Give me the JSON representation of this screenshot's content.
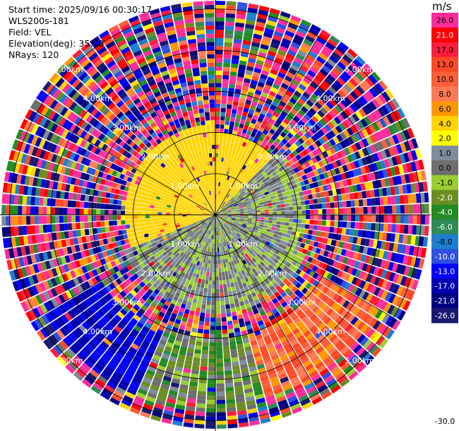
{
  "header": {
    "start_time": "Start time: 2025/09/16 00:30:17",
    "instrument": "WLS200s-181",
    "field": "Field: VEL",
    "elevation": "Elevation(deg): 35.00",
    "nrays": "NRays: 120"
  },
  "colorbar": {
    "unit": "m/s",
    "levels": [
      {
        "label": "26.0",
        "color": "#ff2d9b"
      },
      {
        "label": "21.0",
        "color": "#ff0000"
      },
      {
        "label": "17.0",
        "color": "#ff1e3c"
      },
      {
        "label": "13.0",
        "color": "#ff4a28"
      },
      {
        "label": "10.0",
        "color": "#ff5e3a"
      },
      {
        "label": "8.0",
        "color": "#ff7a55"
      },
      {
        "label": "6.0",
        "color": "#ff9800"
      },
      {
        "label": "4.0",
        "color": "#ffd400"
      },
      {
        "label": "2.0",
        "color": "#ffff00"
      },
      {
        "label": "1.0",
        "color": "#7f8c9a"
      },
      {
        "label": "0.0",
        "color": "#6e6e6e"
      },
      {
        "label": "-1.0",
        "color": "#9acd32"
      },
      {
        "label": "-2.0",
        "color": "#6b8e23"
      },
      {
        "label": "-4.0",
        "color": "#228b22"
      },
      {
        "label": "-6.0",
        "color": "#2e8b57"
      },
      {
        "label": "-8.0",
        "color": "#1e7fd0"
      },
      {
        "label": "-10.0",
        "color": "#3050e0"
      },
      {
        "label": "-13.0",
        "color": "#0000ff"
      },
      {
        "label": "-17.0",
        "color": "#0000b0"
      },
      {
        "label": "-21.0",
        "color": "#000080"
      },
      {
        "label": "-26.0",
        "color": "#191970"
      },
      {
        "label": "-30.0",
        "color": ""
      }
    ]
  },
  "chart_data": {
    "type": "heatmap",
    "projection": "polar-ppi",
    "field": "VEL",
    "unit": "m/s",
    "nrays": 120,
    "elevation_deg": 35.0,
    "range_rings_km": [
      1.0,
      2.0,
      3.0,
      4.0,
      5.0
    ],
    "range_ring_labels": [
      "1.00km",
      "2.00km",
      "3.00km",
      "4.00km",
      "5.00km"
    ],
    "max_range_km": 5.2,
    "range_gate_km": 0.1,
    "spokes_deg": [
      0,
      30,
      60,
      90,
      120,
      150
    ],
    "value_range": [
      -30.0,
      30.0
    ],
    "sectors": [
      {
        "azimuth": [
          250,
          360
        ],
        "range_km": [
          0.0,
          2.2
        ],
        "values_ms": [
          2.0,
          4.0
        ]
      },
      {
        "azimuth": [
          0,
          45
        ],
        "range_km": [
          0.0,
          2.0
        ],
        "values_ms": [
          2.0,
          4.0
        ]
      },
      {
        "azimuth": [
          45,
          115
        ],
        "range_km": [
          0.0,
          2.2
        ],
        "values_ms": [
          -2.0,
          1.0
        ]
      },
      {
        "azimuth": [
          115,
          250
        ],
        "range_km": [
          0.0,
          2.4
        ],
        "values_ms": [
          -2.0,
          1.0
        ]
      },
      {
        "azimuth": [
          120,
          165
        ],
        "range_km": [
          3.0,
          4.6
        ],
        "values_ms": [
          4.0,
          13.0
        ]
      },
      {
        "azimuth": [
          165,
          205
        ],
        "range_km": [
          3.0,
          4.8
        ],
        "values_ms": [
          -6.0,
          1.0
        ]
      },
      {
        "azimuth": [
          205,
          240
        ],
        "range_km": [
          3.2,
          4.8
        ],
        "values_ms": [
          -21.0,
          -13.0
        ]
      }
    ]
  }
}
